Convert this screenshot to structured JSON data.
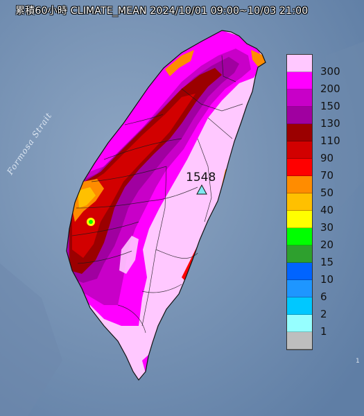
{
  "title": "累積60小時 CLIMATE_MEAN 2024/10/01 09:00~10/03 21:00",
  "water_label": "Formosa Strait",
  "peak": {
    "value": "1548"
  },
  "edge_text": "1",
  "legend": {
    "labels": [
      "300",
      "200",
      "150",
      "130",
      "110",
      "90",
      "70",
      "50",
      "40",
      "30",
      "20",
      "15",
      "10",
      "6",
      "2",
      "1"
    ],
    "colors": [
      "#ffc8ff",
      "#ff00ff",
      "#c800c8",
      "#a000a0",
      "#9b0000",
      "#d20000",
      "#ff0000",
      "#ff8c00",
      "#ffc000",
      "#ffff00",
      "#00ff00",
      "#2ea02e",
      "#0064ff",
      "#1e96ff",
      "#00c8ff",
      "#96ffff",
      "#bebebe"
    ]
  }
}
